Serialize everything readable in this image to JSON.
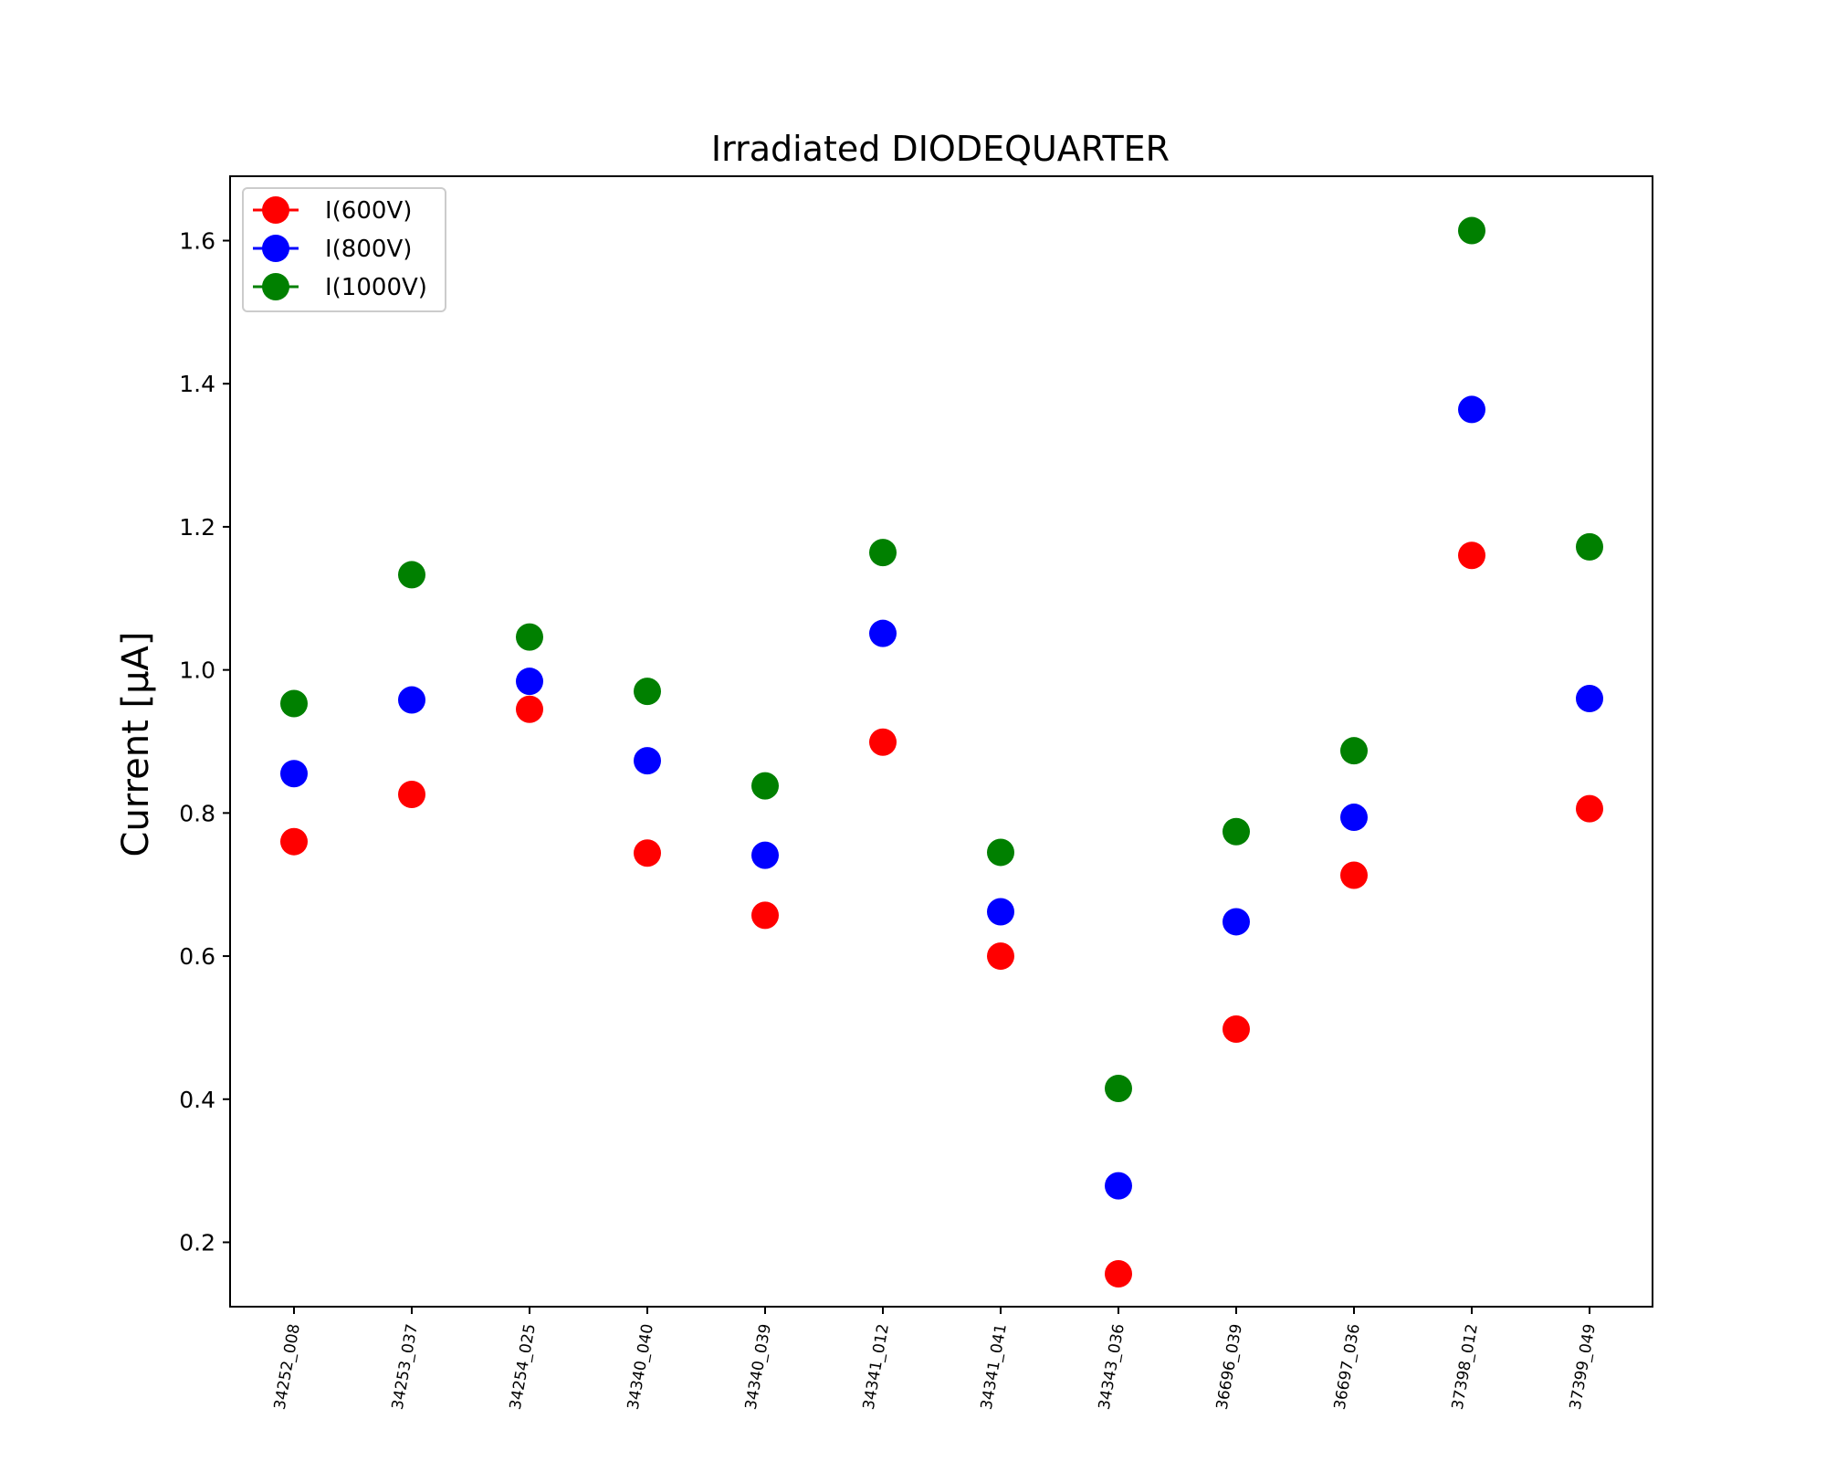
{
  "chart_data": {
    "type": "scatter",
    "title": "Irradiated DIODEQUARTER",
    "xlabel": "",
    "ylabel": "Current [μA]",
    "ylim": [
      0.11,
      1.69
    ],
    "yticks": [
      0.2,
      0.4,
      0.6,
      0.8,
      1.0,
      1.2,
      1.4,
      1.6
    ],
    "grid": false,
    "legend_position": "top-left",
    "categories": [
      "34252_008",
      "34253_037",
      "34254_025",
      "34340_040",
      "34340_039",
      "34341_012",
      "34341_041",
      "34343_036",
      "36696_039",
      "36697_036",
      "37398_012",
      "37399_049"
    ],
    "series": [
      {
        "name": "I(600V)",
        "color": "#ff0000",
        "values": [
          0.76,
          0.826,
          0.945,
          0.744,
          0.657,
          0.899,
          0.6,
          0.156,
          0.498,
          0.713,
          1.16,
          0.806
        ]
      },
      {
        "name": "I(800V)",
        "color": "#0000ff",
        "values": [
          0.855,
          0.958,
          0.984,
          0.873,
          0.741,
          1.051,
          0.662,
          0.279,
          0.648,
          0.794,
          1.364,
          0.96
        ]
      },
      {
        "name": "I(1000V)",
        "color": "#008000",
        "values": [
          0.953,
          1.133,
          1.046,
          0.97,
          0.838,
          1.164,
          0.745,
          0.415,
          0.774,
          0.887,
          1.614,
          1.172
        ]
      }
    ]
  }
}
